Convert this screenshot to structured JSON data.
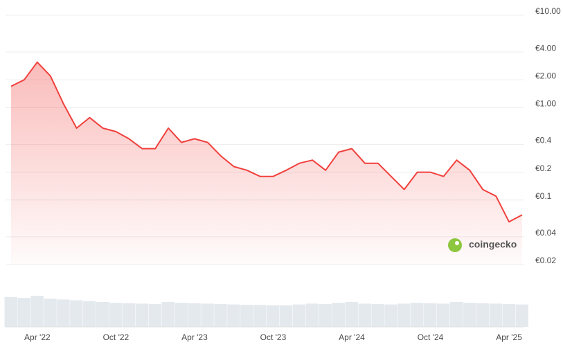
{
  "chart_data": {
    "type": "line",
    "log_scale": true,
    "grid": true,
    "color": "#f0403c",
    "x": [
      "2022-02",
      "2022-03",
      "2022-04",
      "2022-05",
      "2022-06",
      "2022-07",
      "2022-08",
      "2022-09",
      "2022-10",
      "2022-11",
      "2022-12",
      "2023-01",
      "2023-02",
      "2023-03",
      "2023-04",
      "2023-05",
      "2023-06",
      "2023-07",
      "2023-08",
      "2023-09",
      "2023-10",
      "2023-11",
      "2023-12",
      "2024-01",
      "2024-02",
      "2024-03",
      "2024-04",
      "2024-05",
      "2024-06",
      "2024-07",
      "2024-08",
      "2024-09",
      "2024-10",
      "2024-11",
      "2024-12",
      "2025-01",
      "2025-02",
      "2025-03",
      "2025-04",
      "2025-05"
    ],
    "values": [
      1.7,
      2.0,
      3.1,
      2.2,
      1.1,
      0.6,
      0.78,
      0.6,
      0.55,
      0.46,
      0.36,
      0.36,
      0.6,
      0.42,
      0.46,
      0.42,
      0.3,
      0.23,
      0.21,
      0.18,
      0.18,
      0.21,
      0.25,
      0.27,
      0.21,
      0.33,
      0.36,
      0.25,
      0.25,
      0.18,
      0.13,
      0.2,
      0.2,
      0.18,
      0.27,
      0.21,
      0.13,
      0.11,
      0.058,
      0.069
    ],
    "volume": [
      72,
      70,
      75,
      68,
      66,
      64,
      62,
      60,
      58,
      57,
      56,
      55,
      60,
      58,
      57,
      56,
      55,
      54,
      53,
      53,
      52,
      52,
      54,
      56,
      55,
      58,
      60,
      56,
      55,
      54,
      56,
      58,
      57,
      56,
      60,
      58,
      57,
      56,
      55,
      54
    ],
    "y2lim": [
      0,
      100
    ],
    "xlim": [
      "2022-02",
      "2025-05"
    ],
    "xticks": [
      {
        "value": "2022-04",
        "label": "Apr '22"
      },
      {
        "value": "2022-10",
        "label": "Oct '22"
      },
      {
        "value": "2023-04",
        "label": "Apr '23"
      },
      {
        "value": "2023-10",
        "label": "Oct '23"
      },
      {
        "value": "2024-04",
        "label": "Apr '24"
      },
      {
        "value": "2024-10",
        "label": "Oct '24"
      },
      {
        "value": "2025-04",
        "label": "Apr '25"
      }
    ],
    "ylim": [
      0.02,
      10
    ],
    "yticks": [
      {
        "value": 10,
        "label": "€10.00"
      },
      {
        "value": 4,
        "label": "€4.00"
      },
      {
        "value": 2,
        "label": "€2.00"
      },
      {
        "value": 1,
        "label": "€1.00"
      },
      {
        "value": 0.4,
        "label": "€0.4"
      },
      {
        "value": 0.2,
        "label": "€0.2"
      },
      {
        "value": 0.1,
        "label": "€0.1"
      },
      {
        "value": 0.04,
        "label": "€0.04"
      },
      {
        "value": 0.02,
        "label": "€0.02"
      }
    ],
    "watermark": "coingecko"
  }
}
